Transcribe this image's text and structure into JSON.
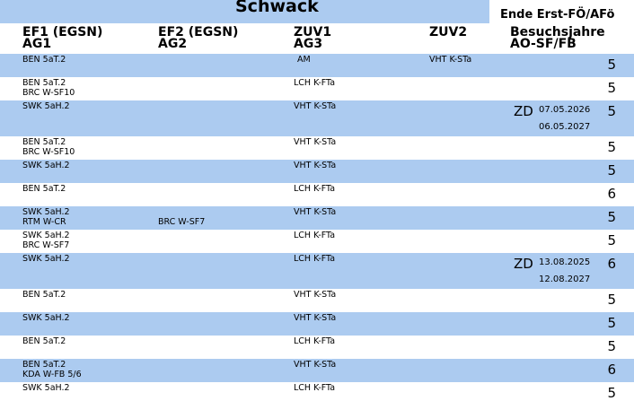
{
  "header": {
    "title": "Schwack",
    "end_label": "Ende Erst-FÖ/AFö",
    "columns": [
      [
        "EF1 (EGSN)",
        "AG1"
      ],
      [
        "EF2 (EGSN)",
        "AG2"
      ],
      [
        "ZUV1",
        "AG3"
      ],
      [
        "ZUV2"
      ],
      [
        "Besuchsjahre",
        "AO-SF/FB"
      ]
    ]
  },
  "table": {
    "rows": [
      {
        "ef1": [
          "BEN 5aT.2"
        ],
        "ef2": [],
        "zuv1": [
          "AM"
        ],
        "zuv2": [
          "VHT K-STa"
        ],
        "zd": null,
        "dates": [],
        "count": 5
      },
      {
        "ef1": [
          "BEN 5aT.2",
          "BRC W-SF10"
        ],
        "ef2": [],
        "zuv1": [
          "LCH K-FTa"
        ],
        "zuv2": [],
        "zd": null,
        "dates": [],
        "count": 5
      },
      {
        "ef1": [
          "SWK 5aH.2"
        ],
        "ef2": [],
        "zuv1": [
          "VHT K-STa"
        ],
        "zuv2": [],
        "zd": "ZD",
        "dates": [
          "07.05.2026",
          "06.05.2027"
        ],
        "count": 5
      },
      {
        "ef1": [
          "BEN 5aT.2",
          "BRC W-SF10"
        ],
        "ef2": [],
        "zuv1": [
          "VHT K-STa"
        ],
        "zuv2": [],
        "zd": null,
        "dates": [],
        "count": 5
      },
      {
        "ef1": [
          "SWK 5aH.2"
        ],
        "ef2": [],
        "zuv1": [
          "VHT K-STa"
        ],
        "zuv2": [],
        "zd": null,
        "dates": [],
        "count": 5
      },
      {
        "ef1": [
          "BEN 5aT.2"
        ],
        "ef2": [],
        "zuv1": [
          "LCH K-FTa"
        ],
        "zuv2": [],
        "zd": null,
        "dates": [],
        "count": 6
      },
      {
        "ef1": [
          "SWK 5aH.2",
          "RTM W-CR"
        ],
        "ef2": [
          null,
          "BRC W-SF7"
        ],
        "zuv1": [
          "VHT K-STa"
        ],
        "zuv2": [],
        "zd": null,
        "dates": [],
        "count": 5
      },
      {
        "ef1": [
          "SWK 5aH.2",
          "BRC W-SF7"
        ],
        "ef2": [],
        "zuv1": [
          "LCH K-FTa"
        ],
        "zuv2": [],
        "zd": null,
        "dates": [],
        "count": 5
      },
      {
        "ef1": [
          "SWK 5aH.2"
        ],
        "ef2": [],
        "zuv1": [
          "LCH K-FTa"
        ],
        "zuv2": [],
        "zd": "ZD",
        "dates": [
          "13.08.2025",
          "12.08.2027"
        ],
        "count": 6
      },
      {
        "ef1": [
          "BEN 5aT.2"
        ],
        "ef2": [],
        "zuv1": [
          "VHT K-STa"
        ],
        "zuv2": [],
        "zd": null,
        "dates": [],
        "count": 5
      },
      {
        "ef1": [
          "SWK 5aH.2"
        ],
        "ef2": [],
        "zuv1": [
          "VHT K-STa"
        ],
        "zuv2": [],
        "zd": null,
        "dates": [],
        "count": 5
      },
      {
        "ef1": [
          "BEN 5aT.2"
        ],
        "ef2": [],
        "zuv1": [
          "LCH K-FTa"
        ],
        "zuv2": [],
        "zd": null,
        "dates": [],
        "count": 5
      },
      {
        "ef1": [
          "BEN 5aT.2",
          "KDA W-FB 5/6"
        ],
        "ef2": [],
        "zuv1": [
          "VHT K-STa"
        ],
        "zuv2": [],
        "zd": null,
        "dates": [],
        "count": 6
      },
      {
        "ef1": [
          "SWK 5aH.2"
        ],
        "ef2": [],
        "zuv1": [
          "LCH K-FTa"
        ],
        "zuv2": [],
        "zd": null,
        "dates": [],
        "count": 5
      }
    ]
  }
}
